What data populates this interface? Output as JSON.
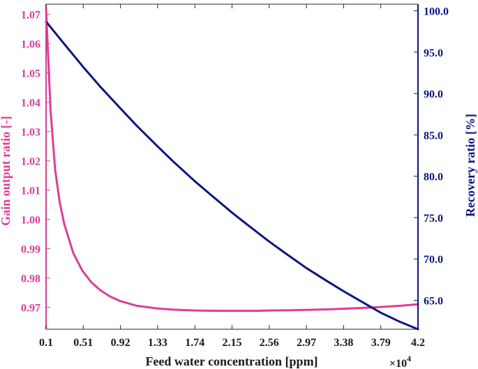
{
  "chart_data": {
    "type": "line",
    "xlabel": "Feed water concentration [ppm]",
    "x_exponent_label": "×10",
    "x_exponent_power": "4",
    "xlim": [
      0.1,
      4.2
    ],
    "xticks": [
      0.1,
      0.51,
      0.92,
      1.33,
      1.74,
      2.15,
      2.56,
      2.97,
      3.38,
      3.79,
      4.2
    ],
    "xtick_labels": [
      "0.1",
      "0.51",
      "0.92",
      "1.33",
      "1.74",
      "2.15",
      "2.56",
      "2.97",
      "3.38",
      "3.79",
      "4.2"
    ],
    "left_axis": {
      "label": "Gain output ratio [-]",
      "color": "#dd3d98",
      "ylim": [
        0.9625,
        1.0735
      ],
      "ticks": [
        0.97,
        0.98,
        0.99,
        1.0,
        1.01,
        1.02,
        1.03,
        1.04,
        1.05,
        1.06,
        1.07
      ],
      "tick_labels": [
        "0.97",
        "0.98",
        "0.99",
        "1.00",
        "1.01",
        "1.02",
        "1.03",
        "1.04",
        "1.05",
        "1.06",
        "1.07"
      ]
    },
    "right_axis": {
      "label": "Recovery ratio [%]",
      "color": "#0b1580",
      "ylim": [
        61.5,
        100.8
      ],
      "ticks": [
        65,
        70,
        75,
        80,
        85,
        90,
        95,
        100
      ],
      "tick_labels": [
        "65.0",
        "70.0",
        "75.0",
        "80.0",
        "85.0",
        "90.0",
        "95.0",
        "100.0"
      ]
    },
    "series": [
      {
        "axis": "left",
        "color": "#dd3d98",
        "x": [
          0.1,
          0.15,
          0.2,
          0.25,
          0.3,
          0.4,
          0.5,
          0.6,
          0.7,
          0.8,
          0.92,
          1.1,
          1.33,
          1.5,
          1.74,
          2.0,
          2.15,
          2.4,
          2.56,
          2.8,
          2.97,
          3.2,
          3.38,
          3.6,
          3.79,
          4.0,
          4.2
        ],
        "y": [
          1.072,
          1.037,
          1.017,
          1.006,
          0.9985,
          0.9885,
          0.9825,
          0.9785,
          0.9758,
          0.9738,
          0.9721,
          0.9705,
          0.9696,
          0.9692,
          0.9689,
          0.9688,
          0.9688,
          0.9688,
          0.9689,
          0.969,
          0.9691,
          0.9693,
          0.9695,
          0.9698,
          0.9701,
          0.9705,
          0.971
        ]
      },
      {
        "axis": "right",
        "color": "#0b1580",
        "x": [
          0.1,
          0.3,
          0.51,
          0.7,
          0.92,
          1.1,
          1.33,
          1.5,
          1.74,
          1.9,
          2.15,
          2.3,
          2.56,
          2.75,
          2.97,
          3.2,
          3.38,
          3.6,
          3.79,
          4.0,
          4.2
        ],
        "y": [
          98.7,
          96.0,
          93.2,
          90.8,
          88.2,
          86.1,
          83.6,
          81.8,
          79.4,
          77.9,
          75.6,
          74.3,
          72.1,
          70.6,
          68.9,
          67.3,
          66.1,
          64.7,
          63.5,
          62.4,
          61.5
        ]
      }
    ]
  }
}
